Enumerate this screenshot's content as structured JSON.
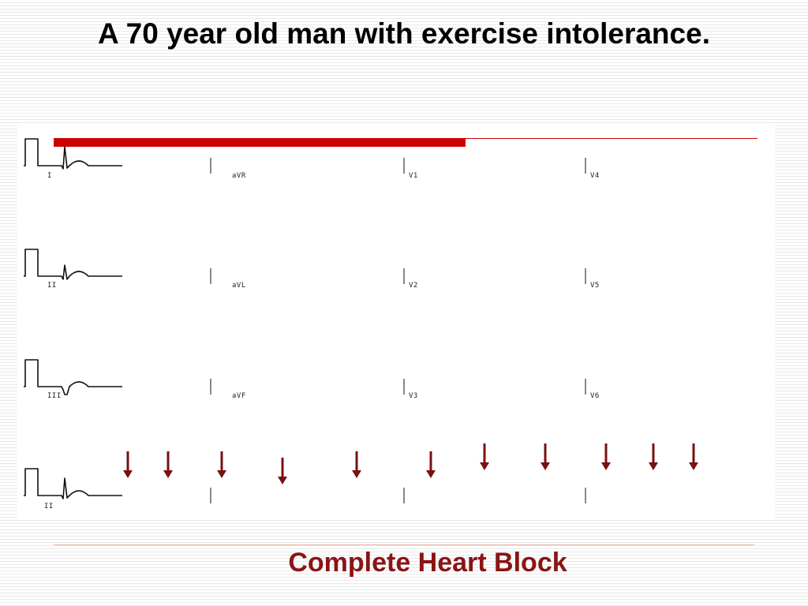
{
  "slide": {
    "title": "A 70 year old man with exercise intolerance.",
    "caption": "Complete Heart Block"
  },
  "leads": [
    {
      "label": "I"
    },
    {
      "label": "aVR"
    },
    {
      "label": "V1"
    },
    {
      "label": "V4"
    },
    {
      "label": "II"
    },
    {
      "label": "aVL"
    },
    {
      "label": "V2"
    },
    {
      "label": "V5"
    },
    {
      "label": "III"
    },
    {
      "label": "aVF"
    },
    {
      "label": "V3"
    },
    {
      "label": "V6"
    },
    {
      "label": "II"
    }
  ],
  "colors": {
    "accent": "#cc0000",
    "arrow": "#7a1010",
    "caption": "#8b1414",
    "trace": "#111111"
  },
  "icons": {
    "p_wave_marker": "down-arrow-icon"
  }
}
